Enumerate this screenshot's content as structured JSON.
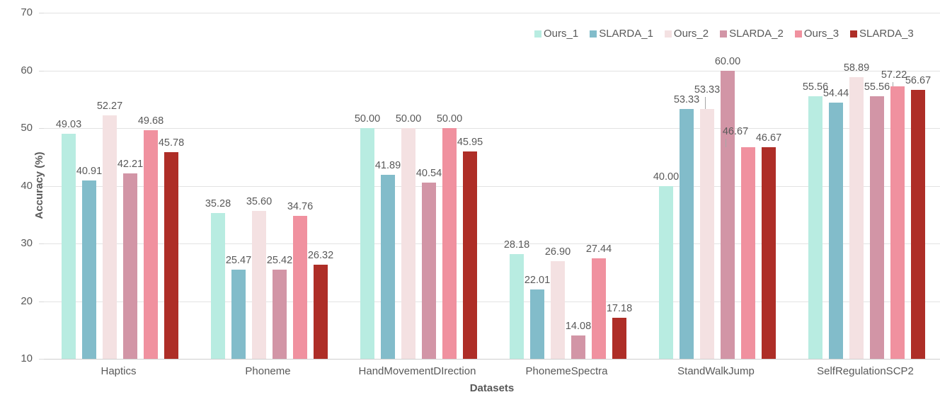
{
  "chart_data": {
    "type": "bar",
    "title": "",
    "xlabel": "Datasets",
    "ylabel": "Accuracy (%)",
    "ylim": [
      10,
      70
    ],
    "yticks": [
      10,
      20,
      30,
      40,
      50,
      60,
      70
    ],
    "grid": true,
    "legend_position": "top-right",
    "value_label_decimals": 2,
    "categories": [
      "Haptics",
      "Phoneme",
      "HandMovementDIrection",
      "PhonemeSpectra",
      "StandWalkJump",
      "SelfRegulationSCP2"
    ],
    "series": [
      {
        "name": "Ours_1",
        "color": "#b8ece1",
        "values": [
          49.03,
          35.28,
          50.0,
          28.18,
          40.0,
          55.56
        ]
      },
      {
        "name": "SLARDA_1",
        "color": "#82bcca",
        "values": [
          40.91,
          25.47,
          41.89,
          22.01,
          53.33,
          54.44
        ]
      },
      {
        "name": "Ours_2",
        "color": "#f4e1e2",
        "values": [
          52.27,
          35.6,
          50.0,
          26.9,
          53.33,
          58.89
        ]
      },
      {
        "name": "SLARDA_2",
        "color": "#d295a6",
        "values": [
          42.21,
          25.42,
          40.54,
          14.08,
          60.0,
          55.56
        ]
      },
      {
        "name": "Ours_3",
        "color": "#f0919f",
        "values": [
          49.68,
          34.76,
          50.0,
          27.44,
          46.67,
          57.22
        ]
      },
      {
        "name": "SLARDA_3",
        "color": "#ae2e27",
        "values": [
          45.78,
          26.32,
          45.95,
          17.18,
          46.67,
          56.67
        ]
      }
    ]
  }
}
